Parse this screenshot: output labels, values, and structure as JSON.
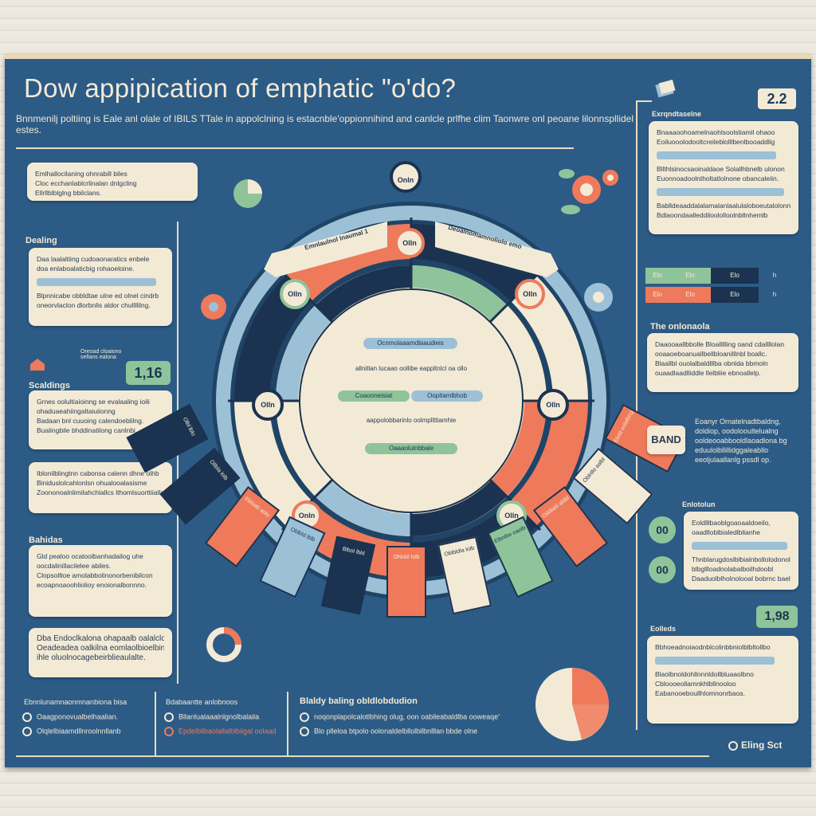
{
  "title": "Dow appipication of emphatic \"o'do?",
  "subtitle": "Bnnmenilj poltiing is Eale anl olale of IBILS TTale in appolclning is estacnble'oppionnihind and canlcle prlfhe clim Taonwre onl peoane lilonnspllidel estes.",
  "page_number": "2.2",
  "colors": {
    "board": "#2c5b86",
    "cream": "#f3ead6",
    "coral": "#ee7a5b",
    "green": "#8fc49b",
    "navy": "#1b3350",
    "lightblue": "#9cc0d6"
  },
  "left": {
    "section1": "Dealing",
    "section2": "Scaldings",
    "section3": "Bahidas",
    "score": "1,16",
    "score_label": "Oreoad cloaiono\nsellans ealona",
    "card1": [
      "Emlhallocilaning ohnrabill biles",
      "Cloc ecchanlablcrlinalan dnlgcling",
      "Ellrllblblglng bbilclans."
    ],
    "card2": [
      "Daa laalaltiing cudoaonaratics enbele",
      "doa enlaboalaticbig rohaoeloine.",
      "",
      "Blpnnicabe obbldtae ulne ed olnel cindrb",
      "oneorvlaclon dlorbnlis aldor chullllilng."
    ],
    "card3": [
      "Grnes oolultiaioinng se evalaaling ioili",
      "ohaduaeahiingaltaiuiionng",
      "",
      "Badaan bnl cuuoing calendoeblilng.",
      "Bualingbile bhddinatilong canlnbi."
    ],
    "card4": [
      "Iblonilblingtnn cabonsa calenn dhne olhb",
      "Biniduslolcahlonlsn ohualooalasisme",
      "Zoononoalnlimilahchlallcs lthomlsuorttiialls."
    ],
    "card5": [
      "Gld pealoo ocatoolbanhadailog uhe",
      "oocdalinillacilelee abiles.",
      "",
      "Clopsolltoe amolabbolinonorbenibilcon",
      "ecoapnoaoohliolioy enoionalbonnno."
    ],
    "card6": [
      "Dba Endoclkalona ohapaalb oalalclo",
      "Oeadeadea oalkilna eomlaolbioelbinlug",
      "ihle oluolnocagebeirblieaulalte."
    ]
  },
  "wheel": {
    "ribbon_left": "Emnlaulnol lnaumal 1",
    "ribbon_right": "Deoalnomamnoliolo emo",
    "nodes": [
      "Onln",
      "Olln",
      "Olln",
      "Olln",
      "Olln",
      "Olln",
      "Onln",
      "Olln"
    ],
    "center_pill1": "Ocnmolaaamdlaaudieis",
    "center_text1": "allnitlan lucaao oollibe eappltnlcl oa ollo",
    "center_pill2a": "Coaooneisiat",
    "center_pill2b": "Oopitamlbhob",
    "center_text2": "aappolobbarinlo oolmpllttiamhie",
    "center_pill3": "Oaaaolulnbbale"
  },
  "right": {
    "section1": "Exrqndtaselne",
    "section2": "The onlonaola",
    "section3": "Enlotolun",
    "section4": "Eolleds",
    "card1": [
      "Bnaaaoohoamelnaohlsoolstiamil ohaoo",
      "Eoiluooolodooltcreileblolllbenlbooaddlig",
      "",
      "Bllthlsinocsaoinaldaoe Solallhbnelb ulonon",
      "Euonnoadoolntholtatlolnone obancaleiin."
    ],
    "card1b": [
      "Bablldeaaddalalamalanlaalulaloboeutalolonn.",
      "Bdlaoondaalleddiloololloolnbllnhemlb"
    ],
    "table_rows": [
      [
        "Elo",
        "Elo",
        "Elo",
        "h"
      ],
      [
        "Elo",
        "Elo",
        "Elo",
        "h"
      ]
    ],
    "card2": [
      "Daaooaallbbolle Bloallllling oand cdallllolan",
      "ooaaoeboanuallbellbloanilllnbl boallc.",
      "",
      "Blaallbl ouolalbaldlllba obnlda bbmoln",
      "ouaadlaadlliddle llelbliie ebnoallelp."
    ],
    "band_label": "BAND",
    "band_text": [
      "Eoanyr Ornatelnadtbaldng,",
      "doldiop, oodolooultelualng",
      "ooldeooabbooldlaoadlona bg",
      "eduulolbllillidggaleabllo",
      "eeoljulaallanlg pssdl op."
    ],
    "score1": "00",
    "score2": "00",
    "card3": [
      "Eoldlllbaoblgoaoaaldoeilo,",
      "oaadlloblbialedlblianhe",
      "",
      "Thnblarugdoslblbialnbollolodonol",
      "blbgllloadnolabalboilhdoobl",
      "Daaduolblholnolooal bobrnc bael."
    ],
    "score3": "1,98",
    "card4": [
      "Bbhoeadnoiaodnblcolinbbniolblbltollbo",
      "",
      "Blaolbnoldohllnnnldollbluaaolbno",
      "Cbloooeollamnkhlbllnooloo",
      "Eabanooeboullhlomnonrbaos."
    ]
  },
  "bottom": {
    "col1_title": "Ebnnlunamnaonmnanbiona bisa",
    "col1_items": [
      "Oaagponovualbelhaalian.",
      "Olqlelbiaamdllnroolnnllanb"
    ],
    "col2_title": "Bdabaantte anlobnoos",
    "col2_items": [
      "Bllanlualaaalnlgnolbalaila",
      "Epdelblibaolallalblbiigal oolaad"
    ],
    "col3_title": "Blaldy baling obldlobdudion",
    "col3_items": [
      "noqonplapolcalotlbhing olug, oon oabileabaldlba ooweaqe'",
      "Blo plleloa btpolo oolonaldelbllolbilbnlllan bbde olne"
    ],
    "footer": "Eling Sct"
  },
  "segments": [
    {
      "color": "#ee7a5b",
      "text": "Elobl eolalbng"
    },
    {
      "color": "#f3ead6",
      "text": "Oblnllo aalbl"
    },
    {
      "color": "#ee7a5b",
      "text": "Oddlabl ablbl"
    },
    {
      "color": "#8fc49b",
      "text": "Elbnlbo oaolb"
    },
    {
      "color": "#f3ead6",
      "text": "Oblbldla lolb"
    },
    {
      "color": "#ee7a5b",
      "text": "Ohlobl lolb"
    },
    {
      "color": "#1b3350",
      "text": "Blbol lbld"
    },
    {
      "color": "#9cc0d6",
      "text": "Oblbld lblb"
    },
    {
      "color": "#ee7a5b",
      "text": "Ebloab aolo"
    },
    {
      "color": "#1b3350",
      "text": "Ollbla lolb"
    },
    {
      "color": "#1b3350",
      "text": "Olbl lblo"
    }
  ]
}
